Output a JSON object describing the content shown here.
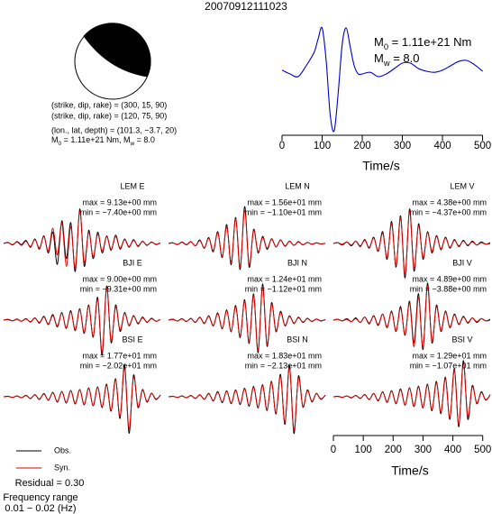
{
  "title": "20070912111023",
  "mechanism": {
    "lines": [
      "(strike, dip, rake) = (300, 15, 90)",
      "(strike, dip, rake) = (120, 75, 90)",
      "(lon., lat, depth) = (101.3, −3.7, 20)"
    ],
    "moment_parts": [
      {
        "text": "M"
      },
      {
        "text": "0",
        "sub": true
      },
      {
        "text": " = 1.11e+21 Nm, M"
      },
      {
        "text": "w",
        "sub": true
      },
      {
        "text": " = 8.0"
      }
    ],
    "color": "#000000"
  },
  "chart_data": [
    {
      "type": "line",
      "x": [
        0,
        20,
        40,
        60,
        80,
        90,
        100,
        110,
        120,
        130,
        140,
        150,
        160,
        170,
        180,
        190,
        200,
        220,
        240,
        260,
        280,
        300,
        320,
        340,
        360,
        380,
        400,
        420,
        440,
        460,
        480,
        500
      ],
      "values": [
        0.12,
        0.05,
        0.0,
        0.2,
        0.45,
        0.7,
        0.9,
        0.3,
        -0.7,
        -1.0,
        -0.3,
        0.6,
        0.9,
        0.55,
        0.2,
        0.05,
        0.05,
        0.08,
        0.0,
        0.05,
        0.15,
        0.25,
        0.25,
        0.15,
        0.1,
        0.08,
        0.12,
        0.2,
        0.28,
        0.3,
        0.22,
        0.1
      ],
      "color": "#0000cc",
      "xlim": [
        0,
        510
      ],
      "ylim": [
        -1,
        1
      ],
      "xticks": [
        0,
        100,
        200,
        300,
        400,
        500
      ],
      "xlabel": "Time/s",
      "annotations": [
        [
          {
            "text": "M"
          },
          {
            "text": "0",
            "sub": true
          },
          {
            "text": " = 1.11e+21 Nm"
          }
        ],
        [
          {
            "text": "M"
          },
          {
            "text": "w",
            "sub": true
          },
          {
            "text": " = 8.0"
          }
        ]
      ]
    },
    {
      "type": "waveforms",
      "x": [
        0,
        15,
        30,
        45,
        60,
        75,
        90,
        105,
        120,
        135,
        150,
        165,
        180,
        195,
        210,
        225,
        240,
        255,
        270,
        285,
        300,
        315,
        330,
        345,
        360,
        375,
        390,
        405,
        420,
        435,
        450,
        465,
        480,
        495,
        510,
        525
      ],
      "xlim": [
        0,
        525
      ],
      "xticks": [
        0,
        100,
        200,
        300,
        400,
        500
      ],
      "xlabel": "Time/s",
      "series": [
        {
          "name": "Obs.",
          "color": "#000000"
        },
        {
          "name": "Syn.",
          "color": "#dd0000"
        }
      ],
      "residual": "Residual = 0.30",
      "frequency": [
        "Frequency range",
        "0.01 − 0.02 (Hz)"
      ],
      "panels": [
        {
          "station": "LEM E",
          "max_label": "max = 9.13e+00 mm",
          "min_label": "min = −7.40e+00 mm",
          "ylim": [
            -10,
            10
          ],
          "obs": [
            0,
            0.3,
            -0.4,
            0.5,
            -0.3,
            0.8,
            -1.0,
            1.2,
            -1.5,
            2.0,
            -2.5,
            3.0,
            -5.5,
            6.0,
            -4.0,
            5.5,
            -7.4,
            9.13,
            -6.0,
            3.5,
            -4.0,
            3.0,
            -2.5,
            2.0,
            -1.8,
            2.2,
            -1.5,
            1.2,
            -1.0,
            1.0,
            -0.8,
            0.6,
            -0.5,
            0.4,
            -0.3,
            0.2
          ],
          "syn": [
            0,
            0.2,
            -0.3,
            0.4,
            -0.5,
            0.6,
            -0.8,
            1.0,
            -1.2,
            1.8,
            -2.0,
            4.0,
            -3.0,
            5.5,
            -6.0,
            4.5,
            -6.5,
            8.5,
            -5.0,
            3.0,
            -3.5,
            2.5,
            -2.0,
            1.8,
            -1.5,
            1.8,
            -1.2,
            1.0,
            -0.8,
            0.8,
            -0.6,
            0.5,
            -0.4,
            0.3,
            -0.2,
            0.1
          ]
        },
        {
          "station": "LEM N",
          "max_label": "max = 1.56e+01 mm",
          "min_label": "min = −1.10e+01 mm",
          "ylim": [
            -16,
            16
          ],
          "obs": [
            0,
            0.3,
            -0.5,
            0.6,
            -0.5,
            0.8,
            -1.0,
            1.5,
            -2.0,
            2.5,
            -3.5,
            5.0,
            -6.0,
            8.0,
            -9.0,
            11.0,
            -11.0,
            15.6,
            -10.0,
            6.0,
            -4.0,
            3.0,
            -2.5,
            2.0,
            -1.5,
            1.5,
            -1.2,
            1.0,
            -0.8,
            0.8,
            -0.6,
            0.5,
            -0.4,
            0.3,
            -0.2,
            0.1
          ],
          "syn": [
            0,
            0.2,
            -0.4,
            0.5,
            -0.6,
            0.7,
            -0.9,
            1.2,
            -1.8,
            2.2,
            -3.0,
            4.5,
            -5.5,
            7.0,
            -8.0,
            10.5,
            -10.0,
            14.0,
            -9.0,
            5.5,
            -3.5,
            2.5,
            -2.0,
            1.8,
            -1.4,
            1.4,
            -1.0,
            0.9,
            -0.7,
            0.6,
            -0.5,
            0.4,
            -0.3,
            0.2,
            -0.2,
            0.1
          ]
        },
        {
          "station": "LEM V",
          "max_label": "max = 4.38e+00 mm",
          "min_label": "min = −4.37e+00 mm",
          "ylim": [
            -4.8,
            4.8
          ],
          "obs": [
            0,
            0.1,
            -0.2,
            0.2,
            -0.3,
            0.3,
            -0.4,
            0.5,
            -0.6,
            0.8,
            -1.0,
            1.5,
            -2.0,
            2.8,
            -3.0,
            3.5,
            -4.37,
            4.38,
            -3.5,
            2.5,
            -2.0,
            1.5,
            -1.2,
            1.0,
            -0.8,
            0.8,
            -0.6,
            0.5,
            -0.4,
            0.4,
            -0.3,
            0.3,
            -0.2,
            0.2,
            -0.1,
            0.1
          ],
          "syn": [
            0,
            0.1,
            -0.1,
            0.2,
            -0.2,
            0.3,
            -0.3,
            0.4,
            -0.5,
            0.7,
            -0.9,
            1.3,
            -1.8,
            2.5,
            -2.8,
            3.3,
            -4.0,
            4.1,
            -3.2,
            2.3,
            -1.8,
            1.4,
            -1.0,
            0.9,
            -0.7,
            0.7,
            -0.5,
            0.4,
            -0.3,
            0.3,
            -0.2,
            0.2,
            -0.2,
            0.1,
            -0.1,
            0.0
          ]
        },
        {
          "station": "BJI E",
          "max_label": "max = 9.00e+00 mm",
          "min_label": "min = −9.31e+00 mm",
          "ylim": [
            -10,
            10
          ],
          "obs": [
            0,
            0.2,
            -0.2,
            0.3,
            -0.3,
            0.4,
            -0.5,
            0.6,
            -0.8,
            1.0,
            -1.2,
            1.5,
            -1.8,
            2.0,
            -2.2,
            2.5,
            -2.8,
            3.0,
            -3.5,
            4.0,
            -4.5,
            6.0,
            -9.31,
            9.0,
            -6.0,
            4.0,
            -3.0,
            2.0,
            -1.5,
            1.2,
            -1.0,
            0.8,
            -0.6,
            0.5,
            -0.3,
            0.2
          ],
          "syn": [
            0,
            0.1,
            -0.2,
            0.2,
            -0.3,
            0.3,
            -0.4,
            0.5,
            -0.6,
            0.8,
            -1.0,
            1.2,
            -1.5,
            1.8,
            -2.0,
            2.2,
            -2.5,
            2.8,
            -3.2,
            3.8,
            -4.2,
            5.5,
            -8.5,
            8.6,
            -5.5,
            3.5,
            -2.6,
            1.8,
            -1.3,
            1.0,
            -0.8,
            0.6,
            -0.5,
            0.4,
            -0.3,
            0.2
          ]
        },
        {
          "station": "BJI N",
          "max_label": "max = 1.24e+01 mm",
          "min_label": "min = −1.12e+01 mm",
          "ylim": [
            -13,
            13
          ],
          "obs": [
            0,
            0.3,
            -0.3,
            0.5,
            -0.5,
            0.6,
            -0.8,
            1.0,
            -1.2,
            1.5,
            -2.0,
            2.5,
            -3.0,
            3.5,
            -4.0,
            5.0,
            -6.0,
            7.0,
            -8.0,
            9.0,
            -11.2,
            12.4,
            -9.0,
            6.0,
            -4.0,
            3.0,
            -2.0,
            1.5,
            -1.2,
            1.0,
            -0.8,
            0.6,
            -0.5,
            0.4,
            -0.3,
            0.2
          ],
          "syn": [
            0,
            0.2,
            -0.3,
            0.4,
            -0.4,
            0.5,
            -0.7,
            0.9,
            -1.0,
            1.3,
            -1.8,
            2.2,
            -2.8,
            3.2,
            -3.8,
            4.6,
            -5.5,
            6.5,
            -7.5,
            8.5,
            -10.5,
            11.5,
            -8.5,
            5.5,
            -3.6,
            2.6,
            -1.8,
            1.3,
            -1.0,
            0.8,
            -0.6,
            0.5,
            -0.4,
            0.3,
            -0.2,
            0.1
          ]
        },
        {
          "station": "BJI V",
          "max_label": "max = 4.89e+00 mm",
          "min_label": "min = −3.88e+00 mm",
          "ylim": [
            -5,
            5
          ],
          "obs": [
            0,
            0.1,
            -0.1,
            0.2,
            -0.2,
            0.3,
            -0.3,
            0.4,
            -0.5,
            0.6,
            -0.7,
            0.8,
            -1.0,
            1.2,
            -1.5,
            1.8,
            -2.0,
            2.5,
            -3.0,
            3.5,
            -3.88,
            4.89,
            -3.0,
            2.0,
            -1.5,
            1.2,
            -1.0,
            0.8,
            -0.6,
            0.5,
            -0.4,
            0.3,
            -0.3,
            0.2,
            -0.1,
            0.1
          ],
          "syn": [
            0,
            0.1,
            -0.1,
            0.1,
            -0.2,
            0.2,
            -0.3,
            0.4,
            -0.4,
            0.5,
            -0.6,
            0.8,
            -0.9,
            1.1,
            -1.4,
            1.6,
            -1.9,
            2.3,
            -3.5,
            3.0,
            -3.6,
            4.5,
            -2.8,
            1.8,
            -1.4,
            1.1,
            -0.9,
            0.7,
            -0.5,
            0.4,
            -0.3,
            0.3,
            -0.2,
            0.2,
            -0.1,
            0.0
          ]
        },
        {
          "station": "BSI E",
          "max_label": "max = 1.77e+01 mm",
          "min_label": "min = −2.02e+01 mm",
          "ylim": [
            -21,
            21
          ],
          "obs": [
            0,
            0.3,
            -0.4,
            0.5,
            -0.6,
            0.8,
            -1.0,
            1.2,
            -1.5,
            1.8,
            -2.0,
            2.5,
            -3.0,
            3.0,
            -3.5,
            3.5,
            -4.0,
            4.0,
            -4.5,
            5.0,
            -5.0,
            5.5,
            -6.0,
            7.0,
            -8.0,
            10.0,
            -12.0,
            17.7,
            -20.2,
            12.0,
            -6.0,
            4.0,
            -3.0,
            2.0,
            -1.5,
            1.0
          ],
          "syn": [
            0,
            0.2,
            -0.3,
            0.4,
            -0.5,
            0.6,
            -0.8,
            1.0,
            -1.2,
            1.5,
            -1.8,
            2.2,
            -2.6,
            2.8,
            -3.2,
            3.3,
            -3.6,
            3.8,
            -4.2,
            4.6,
            -4.8,
            5.2,
            -5.6,
            6.5,
            -7.5,
            9.5,
            -11.0,
            16.0,
            -18.0,
            11.0,
            -5.5,
            3.6,
            -2.6,
            1.8,
            -1.2,
            0.8
          ]
        },
        {
          "station": "BSI N",
          "max_label": "max = 1.83e+01 mm",
          "min_label": "min = −2.13e+01 mm",
          "ylim": [
            -22,
            22
          ],
          "obs": [
            0,
            0.3,
            -0.4,
            0.5,
            -0.6,
            0.8,
            -1.0,
            1.2,
            -1.5,
            2.0,
            -2.5,
            3.0,
            -3.5,
            3.5,
            -4.0,
            4.0,
            -4.5,
            5.0,
            -5.5,
            6.0,
            -6.5,
            7.0,
            -8.0,
            9.0,
            -10.0,
            13.0,
            -16.0,
            18.3,
            -21.3,
            12.0,
            -6.0,
            4.0,
            -3.0,
            2.0,
            -1.5,
            1.0
          ],
          "syn": [
            0,
            0.2,
            -0.3,
            0.4,
            -0.5,
            0.6,
            -0.8,
            1.0,
            -1.3,
            1.7,
            -2.2,
            2.6,
            -3.0,
            3.2,
            -3.6,
            3.7,
            -4.0,
            4.5,
            -5.0,
            5.5,
            -6.0,
            6.5,
            -7.5,
            8.5,
            -9.5,
            12.0,
            -15.0,
            17.0,
            -19.5,
            11.0,
            -5.5,
            3.6,
            -2.6,
            1.8,
            -1.2,
            0.8
          ]
        },
        {
          "station": "BSI V",
          "max_label": "max = 1.29e+01 mm",
          "min_label": "min = −1.07e+01 mm",
          "ylim": [
            -13.5,
            13.5
          ],
          "obs": [
            0,
            0.2,
            -0.2,
            0.3,
            -0.4,
            0.5,
            -0.6,
            0.8,
            -1.0,
            1.2,
            -1.5,
            1.8,
            -2.0,
            2.2,
            -2.5,
            2.8,
            -3.0,
            3.2,
            -3.5,
            3.8,
            -4.0,
            4.5,
            -5.0,
            5.5,
            -6.0,
            7.0,
            -8.0,
            10.0,
            -10.7,
            12.9,
            -8.0,
            4.0,
            -2.5,
            1.8,
            -1.2,
            0.8
          ],
          "syn": [
            0,
            0.1,
            -0.2,
            0.3,
            -0.3,
            0.4,
            -0.5,
            0.7,
            -0.9,
            1.1,
            -1.3,
            1.6,
            -1.8,
            2.0,
            -2.3,
            2.5,
            -2.8,
            3.0,
            -3.2,
            3.5,
            -3.8,
            4.2,
            -4.6,
            5.0,
            -5.5,
            6.5,
            -7.5,
            9.5,
            -10.0,
            12.0,
            -7.0,
            3.6,
            -2.2,
            1.5,
            -1.0,
            0.6
          ]
        }
      ]
    }
  ]
}
